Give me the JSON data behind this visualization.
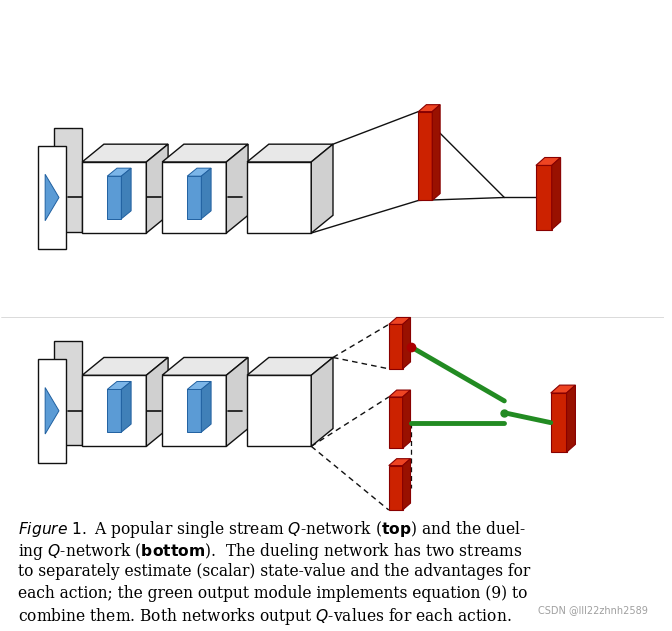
{
  "background_color": "#ffffff",
  "fig_width": 6.72,
  "fig_height": 6.31,
  "red_color": "#cc2200",
  "green_color": "#228B22",
  "blue_color": "#5b9bd5",
  "dark_color": "#111111",
  "watermark": "CSDN @lll22zhnh2589"
}
